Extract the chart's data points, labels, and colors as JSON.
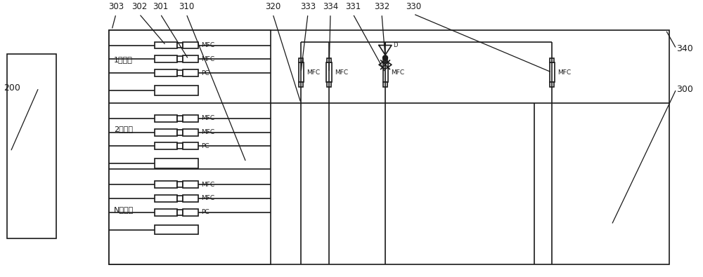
{
  "bg": "#ffffff",
  "lc": "#1a1a1a",
  "fig_w": 10.0,
  "fig_h": 3.95,
  "gas_groups": [
    "1号气体",
    "2号气体",
    "N号气体"
  ],
  "mfc_labels": [
    "MFC",
    "MFC",
    "PC"
  ],
  "ref_labels": [
    "303",
    "302",
    "301",
    "310",
    "320",
    "333",
    "334",
    "331",
    "332",
    "330"
  ],
  "side_labels": [
    "340",
    "300",
    "200"
  ]
}
